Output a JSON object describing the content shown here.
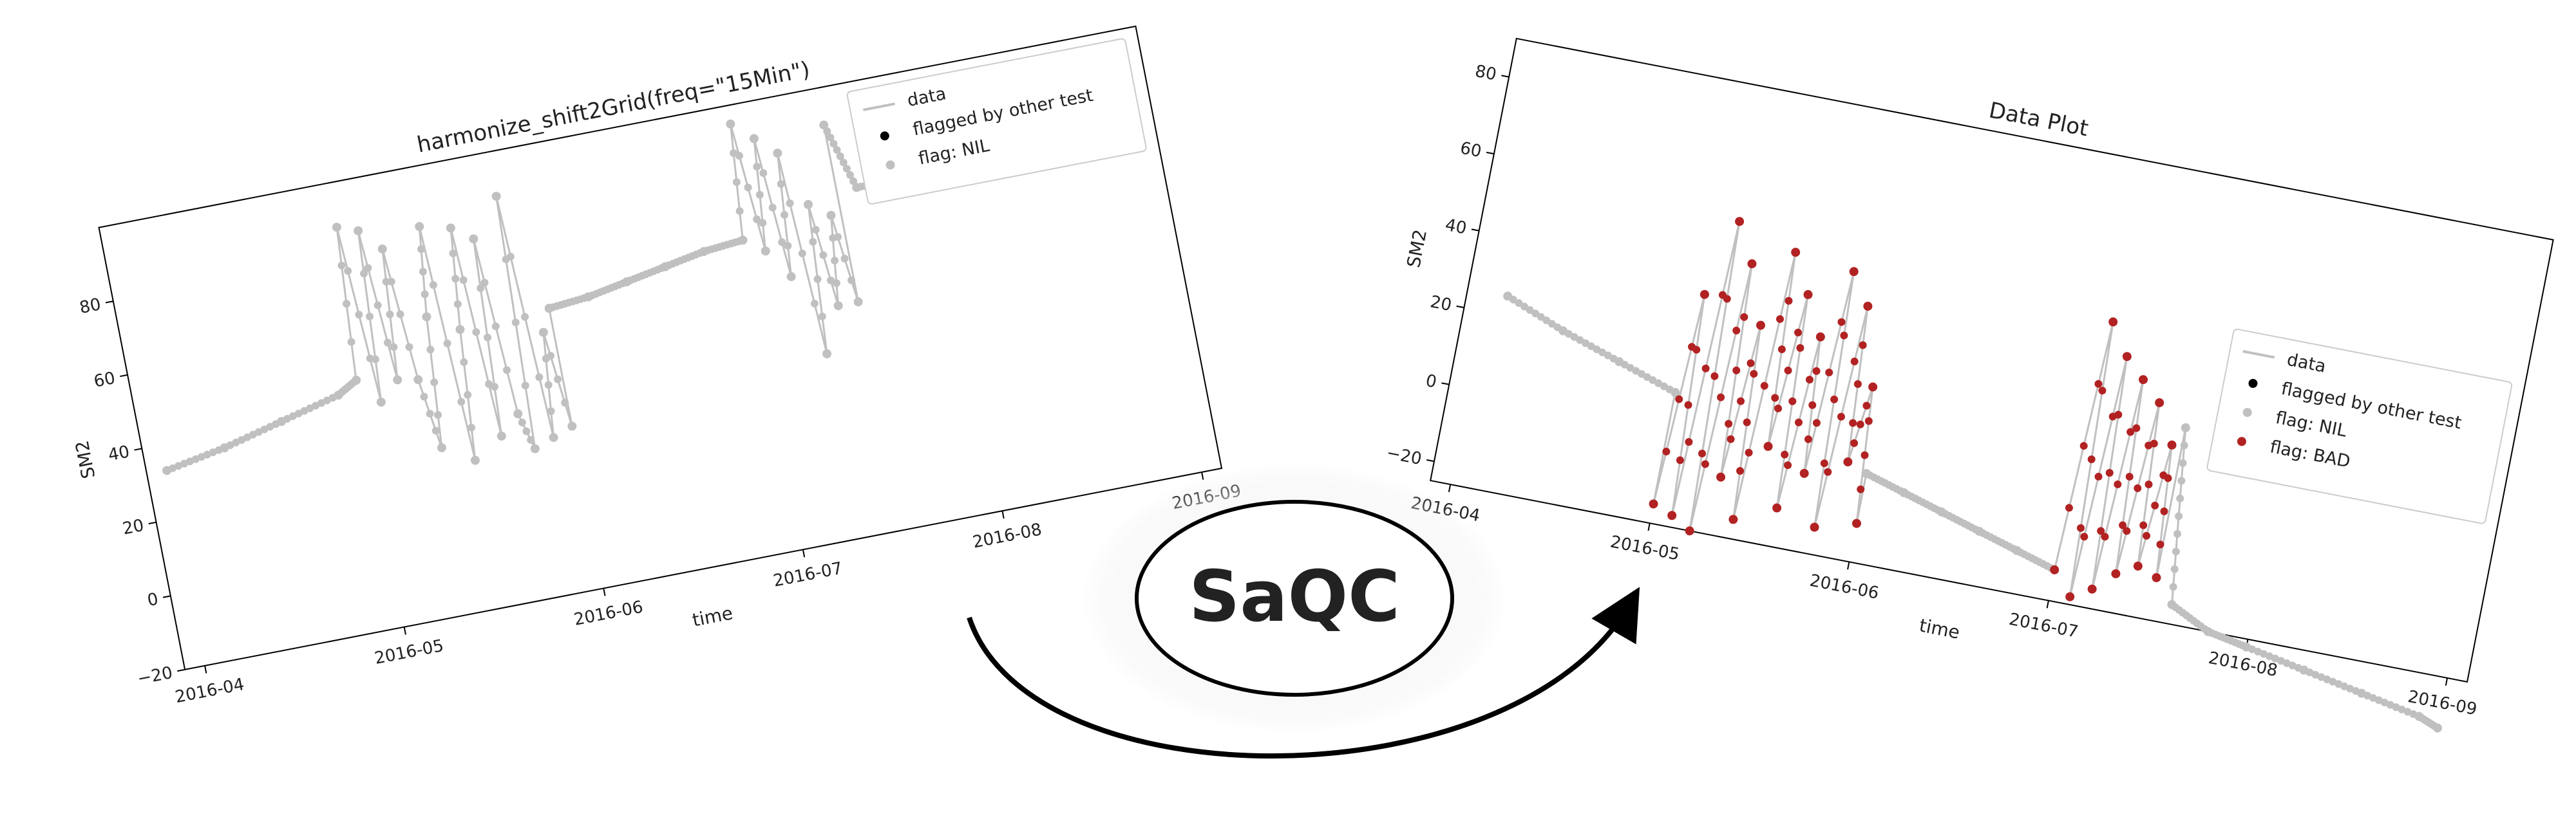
{
  "colors": {
    "data_line": "#c0c0c0",
    "flag_nil": "#c0c0c0",
    "flag_bad": "#b22222",
    "other_test": "#000000",
    "arrow": "#000000"
  },
  "center": {
    "label": "SaQC"
  },
  "chart_data": [
    {
      "type": "line",
      "title": "harmonize_shift2Grid(freq=\"15Min\")",
      "xlabel": "time",
      "ylabel": "SM2",
      "xticks": [
        "2016-04",
        "2016-05",
        "2016-06",
        "2016-07",
        "2016-08",
        "2016-09"
      ],
      "yticks": [
        "−20",
        "0",
        "20",
        "40",
        "60",
        "80"
      ],
      "ylim": [
        -20,
        100
      ],
      "xlim": [
        -0.1,
        5.1
      ],
      "legend": {
        "placement": "top-right",
        "entries": [
          {
            "label": "data",
            "marker": "line",
            "color": "#c0c0c0"
          },
          {
            "label": "flagged by other test",
            "marker": "dot",
            "color": "#000000"
          },
          {
            "label": "flag: NIL",
            "marker": "dot",
            "color": "#c0c0c0"
          }
        ]
      },
      "series": [
        {
          "values_x": [
            0,
            0.3,
            0.6,
            0.9,
            1.0
          ],
          "values_y": [
            33,
            36,
            40,
            44,
            47
          ],
          "style": "trend"
        },
        {
          "values_x": [
            1.0,
            1.05,
            1.1,
            1.15,
            1.2,
            1.25,
            1.3,
            1.35,
            1.4,
            1.45,
            1.5,
            1.55,
            1.6,
            1.65,
            1.7,
            1.75,
            1.8,
            1.85,
            1.9,
            1.95,
            2.0
          ],
          "values_y": [
            47,
            88,
            40,
            86,
            45,
            80,
            44,
            25,
            60,
            84,
            20,
            55,
            82,
            25,
            78,
            30,
            20,
            88,
            22,
            50,
            24
          ],
          "style": "noisy"
        },
        {
          "values_x": [
            2.0,
            2.2,
            2.4,
            2.6,
            2.8,
            3.0
          ],
          "values_y": [
            56,
            57,
            59,
            61,
            63,
            64
          ],
          "style": "trend"
        },
        {
          "values_x": [
            3.0,
            3.05,
            3.1,
            3.15,
            3.2,
            3.25,
            3.3,
            3.35,
            3.4,
            3.45,
            3.5
          ],
          "values_y": [
            64,
            95,
            60,
            90,
            52,
            85,
            30,
            70,
            42,
            66,
            42
          ],
          "style": "noisy"
        },
        {
          "values_x": [
            3.5,
            3.6,
            3.8,
            4.0,
            4.3,
            4.6,
            4.9,
            5.0
          ],
          "values_y": [
            90,
            72,
            72,
            73,
            75,
            77,
            80,
            82
          ],
          "style": "trend"
        }
      ]
    },
    {
      "type": "line",
      "title": "Data Plot",
      "xlabel": "time",
      "ylabel": "SM2",
      "xticks": [
        "2016-04",
        "2016-05",
        "2016-06",
        "2016-07",
        "2016-08",
        "2016-09"
      ],
      "yticks": [
        "−20",
        "0",
        "20",
        "40",
        "60",
        "80"
      ],
      "ylim": [
        -25,
        90
      ],
      "xlim": [
        -0.1,
        5.1
      ],
      "legend": {
        "placement": "right",
        "entries": [
          {
            "label": "data",
            "marker": "line",
            "color": "#c0c0c0"
          },
          {
            "label": "flagged by other test",
            "marker": "dot",
            "color": "#000000"
          },
          {
            "label": "flag: NIL",
            "marker": "dot",
            "color": "#c0c0c0"
          },
          {
            "label": "flag: BAD",
            "marker": "dot",
            "color": "#b22222"
          }
        ]
      },
      "series": [
        {
          "values_x": [
            0.1,
            0.4,
            0.7,
            1.0
          ],
          "values_y": [
            25,
            19,
            14,
            9
          ],
          "style": "trend"
        },
        {
          "values_x": [
            1.0,
            1.05,
            1.1,
            1.15,
            1.2,
            1.25,
            1.3,
            1.35,
            1.4,
            1.45,
            1.5,
            1.55,
            1.6,
            1.65,
            1.7,
            1.75,
            1.8,
            1.85,
            1.9,
            1.95,
            2.0
          ],
          "values_y": [
            -20,
            35,
            -22,
            55,
            -25,
            45,
            -10,
            30,
            -20,
            50,
            0,
            40,
            -15,
            30,
            -5,
            48,
            -18,
            40,
            0,
            20,
            -15
          ],
          "style": "bad"
        },
        {
          "values_x": [
            2.0,
            2.2,
            2.4,
            2.6,
            2.8,
            3.0
          ],
          "values_y": [
            -2,
            -5,
            -8,
            -11,
            -14,
            -17
          ],
          "style": "trend"
        },
        {
          "values_x": [
            3.0,
            3.05,
            3.1,
            3.15,
            3.2,
            3.25,
            3.3,
            3.35,
            3.4,
            3.45,
            3.5
          ],
          "values_y": [
            -17,
            48,
            -23,
            40,
            -20,
            35,
            -15,
            30,
            -12,
            20,
            -14
          ],
          "style": "bad"
        },
        {
          "values_x": [
            3.5,
            3.6,
            3.8,
            4.0,
            4.3,
            4.6,
            4.9,
            5.0
          ],
          "values_y": [
            25,
            -20,
            -25,
            -27,
            -30,
            -33,
            -36,
            -38
          ],
          "style": "trend"
        }
      ]
    }
  ]
}
